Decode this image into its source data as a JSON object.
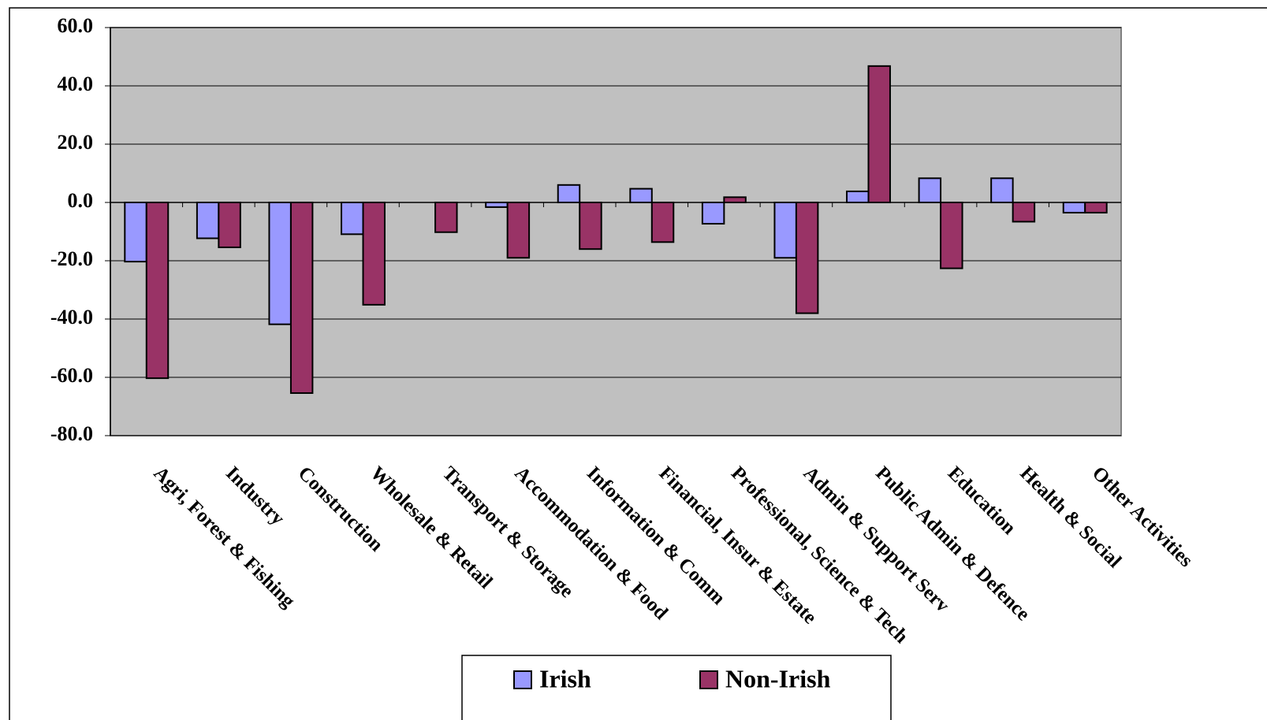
{
  "chart_data": {
    "type": "bar",
    "categories": [
      "Agri, Forest & Fishing",
      "Industry",
      "Construction",
      "Wholesale & Retail",
      "Transport & Storage",
      "Accommodation & Food",
      "Information & Comm",
      "Financial, Insur & Estate",
      "Professional, Science & Tech",
      "Admin & Support Serv",
      "Public Admin & Defence",
      "Education",
      "Health & Social",
      "Other Activities"
    ],
    "series": [
      {
        "name": "Irish",
        "color": "#9999ff",
        "values": [
          -20.3,
          -12.3,
          -41.8,
          -10.9,
          0,
          -1.6,
          6.0,
          4.7,
          -7.3,
          -19.0,
          3.8,
          8.3,
          8.3,
          -3.5
        ]
      },
      {
        "name": "Non-Irish",
        "color": "#993366",
        "values": [
          -60.3,
          -15.4,
          -65.4,
          -35.1,
          -10.2,
          -19.0,
          -16.0,
          -13.6,
          1.8,
          -38.0,
          46.8,
          -22.6,
          -6.6,
          -3.5
        ]
      }
    ],
    "ylim": [
      -80,
      60
    ],
    "yticks": [
      {
        "value": -80,
        "label": "-80.0"
      },
      {
        "value": -60,
        "label": "-60.0"
      },
      {
        "value": -40,
        "label": "-40.0"
      },
      {
        "value": -20,
        "label": "-20.0"
      },
      {
        "value": 0,
        "label": "0.0"
      },
      {
        "value": 20,
        "label": "20.0"
      },
      {
        "value": 40,
        "label": "40.0"
      },
      {
        "value": 60,
        "label": "60.0"
      }
    ],
    "grid": true,
    "plot_background": "#c0c0c0"
  }
}
